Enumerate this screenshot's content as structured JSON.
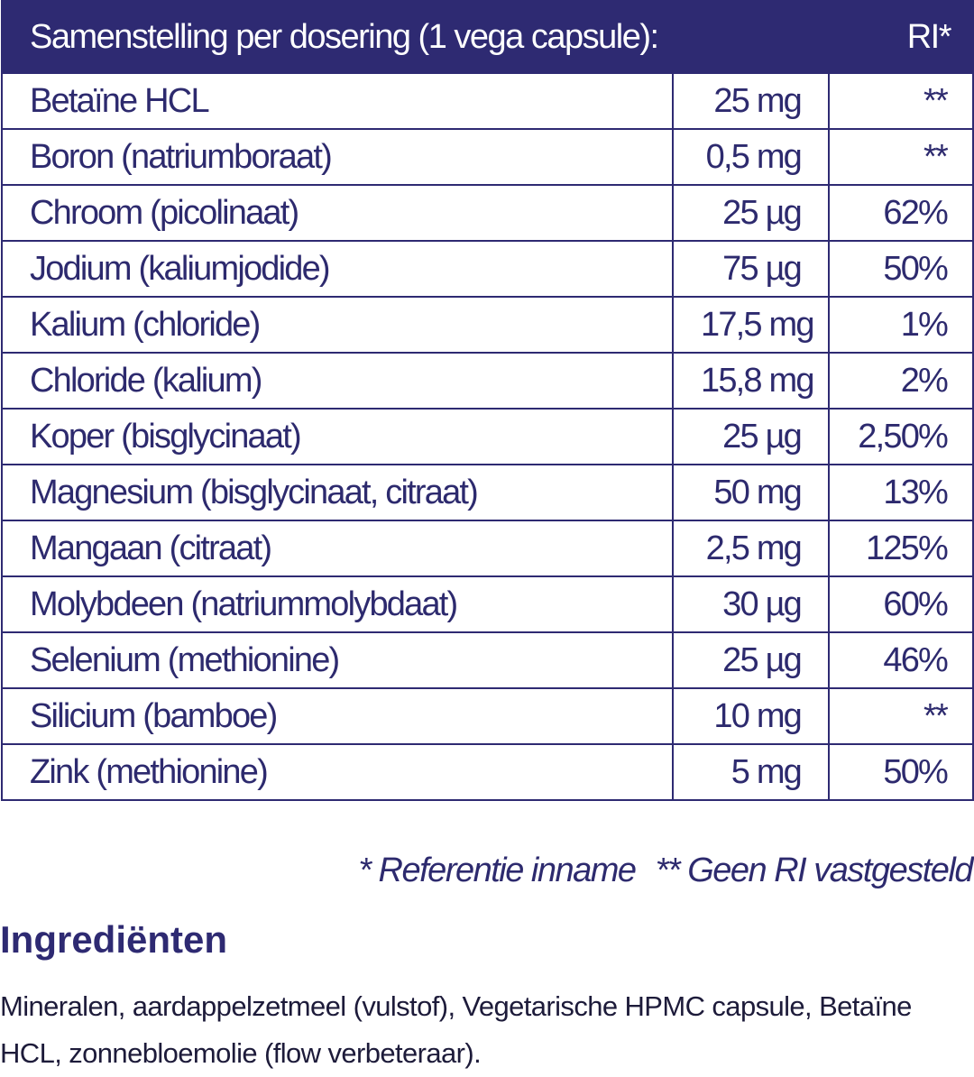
{
  "table": {
    "header": [
      "Samenstelling per dosering (1 vega capsule):",
      "RI*"
    ],
    "rows": [
      [
        "Betaïne HCL",
        "25 mg",
        "**"
      ],
      [
        "Boron (natriumboraat)",
        "0,5 mg",
        "**"
      ],
      [
        "Chroom (picolinaat)",
        "25 µg",
        "62%"
      ],
      [
        "Jodium (kaliumjodide)",
        "75 µg",
        "50%"
      ],
      [
        "Kalium (chloride)",
        "17,5 mg",
        "1%"
      ],
      [
        "Chloride (kalium)",
        "15,8 mg",
        "2%"
      ],
      [
        "Koper (bisglycinaat)",
        "25 µg",
        "2,50%"
      ],
      [
        "Magnesium (bisglycinaat, citraat)",
        "50 mg",
        "13%"
      ],
      [
        "Mangaan (citraat)",
        "2,5 mg",
        "125%"
      ],
      [
        "Molybdeen (natriummolybdaat)",
        "30 µg",
        "60%"
      ],
      [
        "Selenium (methionine)",
        "25 µg",
        "46%"
      ],
      [
        "Silicium (bamboe)",
        "10 mg",
        "**"
      ],
      [
        "Zink (methionine)",
        "5 mg",
        "50%"
      ]
    ]
  },
  "footnotes": [
    "* Referentie inname",
    "** Geen RI vastgesteld"
  ],
  "ingredients": {
    "title": "Ingrediënten",
    "text": "Mineralen, aardappelzetmeel (vulstof), Vegetarische HPMC capsule, Betaïne HCL, zonnebloemolie (flow verbeteraar)."
  }
}
